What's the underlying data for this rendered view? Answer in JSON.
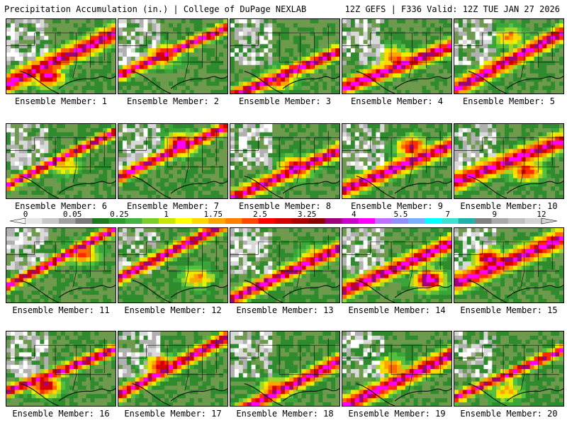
{
  "header": {
    "left": "Precipitation Accumulation (in.) | College of DuPage NEXLAB",
    "right": "12Z GEFS | F336 Valid: 12Z TUE JAN 27 2026"
  },
  "label_prefix": "Ensemble Member:",
  "members": [
    1,
    2,
    3,
    4,
    5,
    6,
    7,
    8,
    9,
    10,
    11,
    12,
    13,
    14,
    15,
    16,
    17,
    18,
    19,
    20
  ],
  "colorbar": {
    "tick_labels": [
      "0",
      "0.05",
      "0.25",
      "1",
      "1.75",
      "2.5",
      "3.25",
      "4",
      "5.5",
      "7",
      "9",
      "12"
    ],
    "colors": [
      "#e6e6e6",
      "#c8c8c8",
      "#a0a0a0",
      "#7a7a7a",
      "#1e7a1e",
      "#2e9b2e",
      "#44b344",
      "#7ccd2c",
      "#c8e600",
      "#ffff00",
      "#ffd700",
      "#ffa500",
      "#ff7f00",
      "#ff4500",
      "#ff0000",
      "#d40000",
      "#aa0000",
      "#8b0000",
      "#a0007a",
      "#c800c8",
      "#ff00ff",
      "#c070ff",
      "#9090ff",
      "#7ab0ff",
      "#00ffff",
      "#40e0d0",
      "#20b2aa",
      "#808080",
      "#a9a9a9",
      "#c0c0c0",
      "#d3d3d3"
    ],
    "units": "in."
  }
}
